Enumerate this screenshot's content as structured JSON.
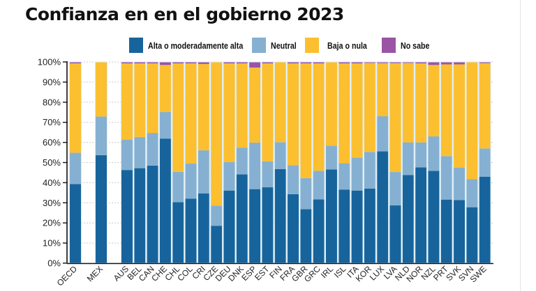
{
  "chart_data": {
    "type": "bar",
    "stacked": true,
    "title": "Confianza en en el gobierno 2023",
    "xlabel": "",
    "ylabel": "",
    "ylim": [
      0,
      100
    ],
    "y_ticks": [
      0,
      10,
      20,
      30,
      40,
      50,
      60,
      70,
      80,
      90,
      100
    ],
    "y_tick_format": "{v}%",
    "grid": true,
    "legend_position": "top",
    "categories": [
      "OECD",
      "MEX",
      "AUS",
      "BEL",
      "CAN",
      "CHE",
      "CHL",
      "COL",
      "CRI",
      "CZE",
      "DEU",
      "DNK",
      "ESP",
      "EST",
      "FIN",
      "FRA",
      "GBR",
      "GRC",
      "IRL",
      "ISL",
      "ITA",
      "KOR",
      "LUX",
      "LVA",
      "NLD",
      "NOR",
      "NZL",
      "PRT",
      "SVK",
      "SVN",
      "SWE"
    ],
    "groups": [
      [
        "OECD"
      ],
      [
        "MEX"
      ],
      [
        "AUS",
        "BEL",
        "CAN",
        "CHE",
        "CHL",
        "COL",
        "CRI",
        "CZE",
        "DEU",
        "DNK",
        "ESP",
        "EST",
        "FIN",
        "FRA",
        "GBR",
        "GRC",
        "IRL",
        "ISL",
        "ITA",
        "KOR",
        "LUX",
        "LVA",
        "NLD",
        "NOR",
        "NZL",
        "PRT",
        "SVK",
        "SVN",
        "SWE"
      ]
    ],
    "series": [
      {
        "name": "Alta o moderadamente alta",
        "color": "#17649c",
        "values": [
          39.3,
          53.7,
          46.3,
          47.2,
          48.5,
          61.9,
          30.3,
          32.1,
          34.7,
          18.6,
          36.1,
          44.1,
          36.8,
          37.7,
          46.8,
          34.3,
          26.8,
          31.7,
          46.6,
          36.6,
          36.1,
          37.1,
          55.6,
          28.7,
          43.8,
          47.6,
          45.9,
          31.6,
          31.4,
          27.8,
          43.0
        ]
      },
      {
        "name": "Neutral",
        "color": "#86b0d1",
        "values": [
          15.6,
          19.2,
          15.1,
          15.5,
          16.2,
          13.2,
          15.1,
          17.4,
          21.4,
          10.0,
          14.2,
          13.3,
          23.1,
          12.9,
          13.3,
          14.4,
          15.5,
          14.2,
          11.8,
          13.1,
          16.3,
          18.2,
          17.4,
          16.6,
          16.2,
          12.4,
          17.1,
          21.6,
          16.0,
          14.0,
          14.0
        ]
      },
      {
        "name": "Baja o nula",
        "color": "#fbbf30",
        "values": [
          44.4,
          27.1,
          37.9,
          36.6,
          34.6,
          23.4,
          53.9,
          49.8,
          42.9,
          71.4,
          49.0,
          41.9,
          37.3,
          48.7,
          39.9,
          50.6,
          57.0,
          53.4,
          41.6,
          49.6,
          46.9,
          44.2,
          26.4,
          54.1,
          39.5,
          39.3,
          35.5,
          45.6,
          51.4,
          58.2,
          42.4
        ]
      },
      {
        "name": "No sabe",
        "color": "#9b54a5",
        "values": [
          0.7,
          0.0,
          0.7,
          0.7,
          0.7,
          1.5,
          0.7,
          0.7,
          1.0,
          0.0,
          0.7,
          0.7,
          2.8,
          0.7,
          0.0,
          0.7,
          0.7,
          0.7,
          0.0,
          0.7,
          0.7,
          0.5,
          0.6,
          0.6,
          0.5,
          0.7,
          1.5,
          1.2,
          1.2,
          0.0,
          0.6
        ]
      }
    ]
  }
}
